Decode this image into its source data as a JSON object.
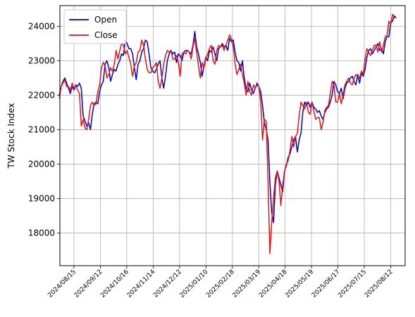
{
  "chart_data": {
    "type": "line",
    "title": "",
    "xlabel": "",
    "ylabel": "TW Stock Index",
    "x_ticks": [
      "2024/08/15",
      "2024/09/12",
      "2024/10/16",
      "2024/11/14",
      "2024/12/12",
      "2025/01/10",
      "2025/02/18",
      "2025/03/19",
      "2025/04/18",
      "2025/05/19",
      "2025/06/17",
      "2025/07/15",
      "2025/08/12"
    ],
    "y_ticks": [
      18000,
      19000,
      20000,
      21000,
      22000,
      23000,
      24000
    ],
    "ylim": [
      17050,
      24600
    ],
    "grid": true,
    "legend_position": "top-left",
    "series": [
      {
        "name": "Open",
        "color": "#0000cc",
        "values": [
          22000,
          22250,
          22400,
          22500,
          22350,
          22200,
          22050,
          22250,
          22150,
          22300,
          22250,
          22350,
          22200,
          21400,
          21250,
          21100,
          21200,
          21000,
          21450,
          21750,
          21800,
          21750,
          22100,
          22300,
          22400,
          22900,
          23000,
          22800,
          22400,
          22600,
          22750,
          22700,
          22900,
          23000,
          23200,
          23150,
          23600,
          23500,
          23350,
          23350,
          23200,
          22800,
          22450,
          22900,
          23000,
          23250,
          23350,
          23600,
          23550,
          23200,
          22800,
          22700,
          22650,
          22750,
          22900,
          23000,
          22500,
          22200,
          22550,
          23000,
          23200,
          23300,
          23200,
          23250,
          22950,
          23200,
          23150,
          23000,
          23250,
          23300,
          23300,
          23250,
          23200,
          23450,
          23850,
          23400,
          23200,
          22950,
          22550,
          22850,
          23100,
          23000,
          23300,
          23250,
          23400,
          23200,
          23000,
          23350,
          23400,
          23500,
          23400,
          23450,
          23300,
          23650,
          23550,
          23600,
          23250,
          23000,
          22950,
          22700,
          23000,
          22500,
          22200,
          22100,
          22350,
          22150,
          22050,
          22200,
          22350,
          22250,
          22100,
          21700,
          21200,
          21000,
          20700,
          19500,
          18600,
          18300,
          19400,
          19800,
          19600,
          19400,
          19200,
          19800,
          19950,
          20200,
          20300,
          20500,
          20700,
          20800,
          20350,
          20700,
          20900,
          21500,
          21800,
          21700,
          21800,
          21650,
          21800,
          21650,
          21600,
          21500,
          21550,
          21400,
          21300,
          21500,
          21600,
          21650,
          21800,
          22000,
          22400,
          22300,
          22100,
          22050,
          22200,
          21900,
          22200,
          22350,
          22400,
          22500,
          22550,
          22400,
          22300,
          22600,
          22350,
          22650,
          22550,
          22750,
          23100,
          23300,
          23350,
          23200,
          23300,
          23400,
          23500,
          23300,
          23350,
          23200,
          23550,
          23700,
          23700,
          24100,
          24150,
          24300,
          24250
        ]
      },
      {
        "name": "Close",
        "color": "#ee1111",
        "values": [
          21900,
          22250,
          22350,
          22450,
          22250,
          22250,
          22150,
          22350,
          22200,
          22250,
          22150,
          22050,
          21100,
          21300,
          21050,
          21000,
          21300,
          21700,
          21800,
          21700,
          21750,
          22100,
          22300,
          22800,
          22950,
          22850,
          22500,
          22600,
          22800,
          22700,
          22900,
          23300,
          23050,
          23300,
          23500,
          23450,
          23200,
          23300,
          23100,
          22900,
          22550,
          22850,
          22950,
          23250,
          23300,
          23600,
          23450,
          23050,
          22750,
          22650,
          22650,
          22800,
          22850,
          22950,
          22400,
          22200,
          22500,
          22900,
          23150,
          23300,
          23250,
          23300,
          23050,
          23050,
          23150,
          22950,
          22550,
          23200,
          23250,
          23200,
          23300,
          23250,
          23050,
          23400,
          23650,
          23250,
          22850,
          22500,
          22950,
          22800,
          23050,
          23200,
          23350,
          23450,
          23000,
          22900,
          23300,
          23450,
          23400,
          23450,
          23300,
          23450,
          23600,
          23750,
          23650,
          23400,
          22900,
          22600,
          22750,
          22900,
          22600,
          22350,
          22000,
          22400,
          22100,
          22000,
          22300,
          22200,
          22300,
          22250,
          21800,
          20700,
          21300,
          21250,
          19500,
          17400,
          18300,
          19000,
          19600,
          19800,
          19500,
          18800,
          19400,
          19800,
          20000,
          20100,
          20400,
          20800,
          20500,
          20800,
          20900,
          21400,
          21800,
          21700,
          21600,
          21800,
          21500,
          21450,
          21800,
          21550,
          21300,
          21350,
          21350,
          21000,
          21200,
          21550,
          21650,
          21700,
          22050,
          22400,
          22300,
          21800,
          21800,
          22050,
          21750,
          22000,
          22300,
          22400,
          22500,
          22350,
          22300,
          22500,
          22600,
          22550,
          22500,
          22700,
          22600,
          23050,
          23350,
          23250,
          23150,
          23300,
          23450,
          23450,
          23250,
          23550,
          23250,
          23450,
          23700,
          23750,
          24150,
          24050,
          24350,
          24250,
          24250
        ]
      }
    ]
  }
}
